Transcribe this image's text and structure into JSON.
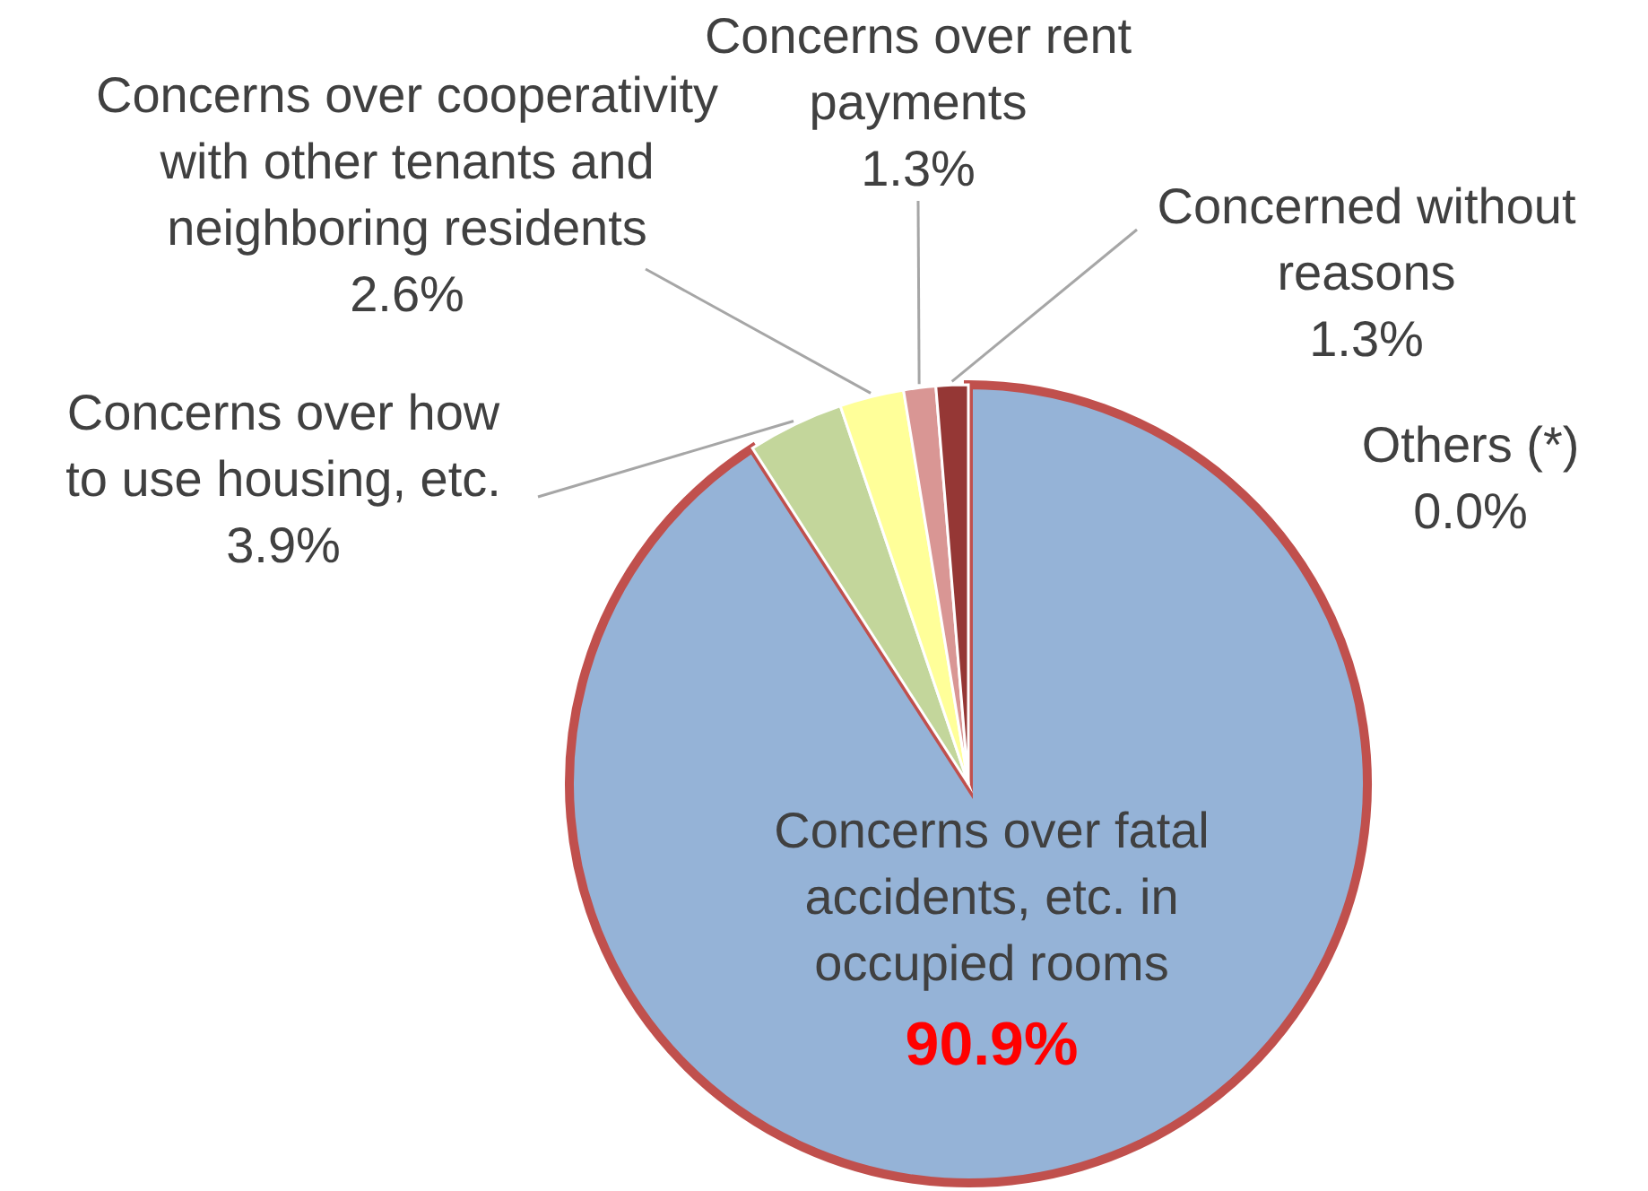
{
  "chart_data": {
    "type": "pie",
    "categories": [
      "Concerns over fatal accidents, etc. in occupied rooms",
      "Concerns over how to use housing, etc.",
      "Concerns over cooperativity with other tenants and neighboring residents",
      "Concerns over rent payments",
      "Concerned without reasons",
      "Others (*)"
    ],
    "values": [
      90.9,
      3.9,
      2.6,
      1.3,
      1.3,
      0.0
    ],
    "colors": [
      "#95b3d7",
      "#c3d69b",
      "#ffff99",
      "#d99694",
      "#953735",
      "#4f81bd"
    ],
    "value_labels": [
      "90.9%",
      "3.9%",
      "2.6%",
      "1.3%",
      "1.3%",
      "0.0%"
    ],
    "legend": false
  }
}
